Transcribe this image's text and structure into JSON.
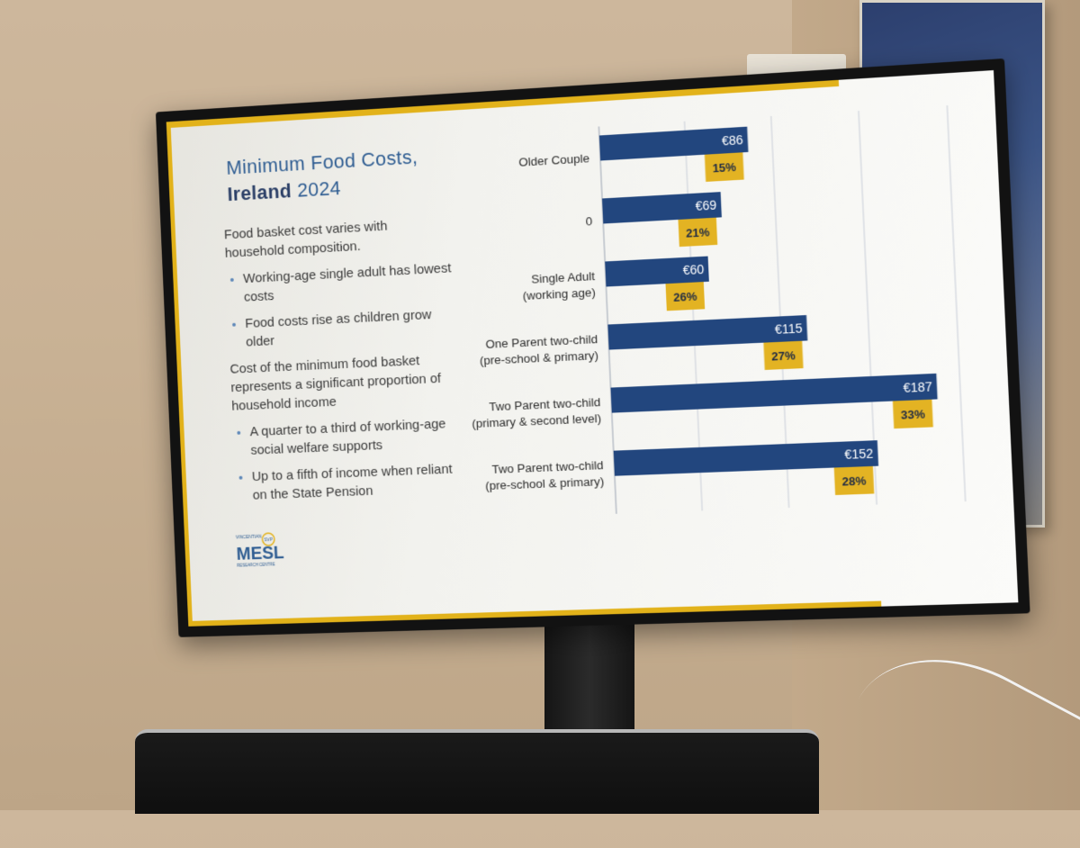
{
  "slide": {
    "title_line1": "Minimum Food Costs,",
    "title_bold": "Ireland",
    "title_year": "2024",
    "intro": "Food basket cost varies with household composition.",
    "bullets_a": [
      "Working-age single adult has lowest costs",
      "Food costs rise as children grow older"
    ],
    "paragraph2": "Cost of the minimum food basket represents a significant proportion of household income",
    "bullets_b": [
      "A quarter to a third of working-age social welfare supports",
      "Up to a fifth of income when reliant on the State Pension"
    ],
    "logo_top": "VINCENTIAN",
    "logo_main": "MESL",
    "logo_bottom": "RESEARCH CENTRE",
    "logo_badge": "SVP"
  },
  "colors": {
    "bar_blue": "#22467e",
    "badge_yellow": "#e3b323",
    "accent_yellow": "#e2b21a",
    "title_blue": "#2f5d92"
  },
  "chart_data": {
    "type": "bar",
    "orientation": "horizontal",
    "categories": [
      [
        "Older Couple"
      ],
      [
        "0"
      ],
      [
        "Single Adult",
        "(working age)"
      ],
      [
        "One Parent two-child",
        "(pre-school & primary)"
      ],
      [
        "Two Parent two-child",
        "(primary & second level)"
      ],
      [
        "Two Parent two-child",
        "(pre-school & primary)"
      ]
    ],
    "series": [
      {
        "values": [
          86,
          69,
          60,
          115,
          187,
          152
        ],
        "labels": [
          "€86",
          "€69",
          "€60",
          "€115",
          "€187",
          "€152"
        ]
      },
      {
        "values": [
          15,
          21,
          26,
          27,
          33,
          28
        ],
        "labels": [
          "15%",
          "21%",
          "26%",
          "27%",
          "33%",
          "28%"
        ]
      }
    ],
    "xlim": [
      0,
      200
    ],
    "grid": true,
    "legend": "none"
  }
}
